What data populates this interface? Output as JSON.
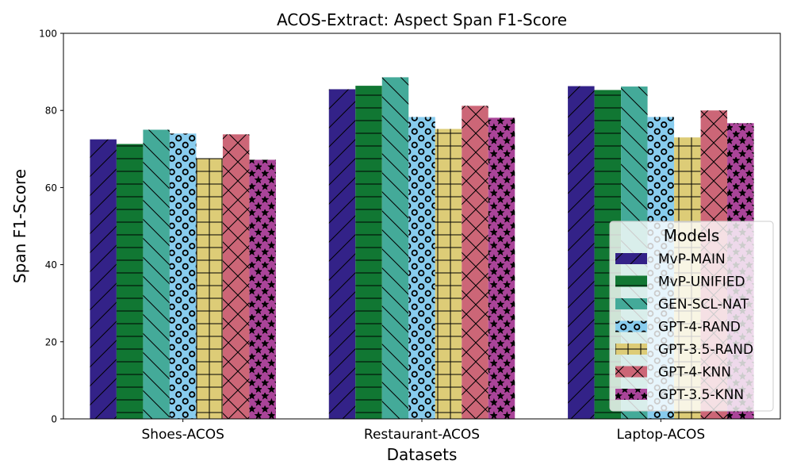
{
  "chart_data": {
    "type": "bar",
    "title": "ACOS-Extract: Aspect Span F1-Score",
    "xlabel": "Datasets",
    "ylabel": "Span F1-Score",
    "ylim": [
      0,
      100
    ],
    "yticks": [
      0,
      20,
      40,
      60,
      80,
      100
    ],
    "grid": false,
    "categories": [
      "Shoes-ACOS",
      "Restaurant-ACOS",
      "Laptop-ACOS"
    ],
    "legend": {
      "title": "Models",
      "placement": "lower-right"
    },
    "series": [
      {
        "name": "MvP-MAIN",
        "color": "#332288",
        "pattern": "diagonal",
        "values": [
          72.5,
          85.5,
          86.3
        ]
      },
      {
        "name": "MvP-UNIFIED",
        "color": "#117733",
        "pattern": "horizontal",
        "values": [
          71.3,
          86.4,
          85.3
        ]
      },
      {
        "name": "GEN-SCL-NAT",
        "color": "#44AA99",
        "pattern": "backdiagonal",
        "values": [
          75.0,
          88.6,
          86.2
        ]
      },
      {
        "name": "GPT-4-RAND",
        "color": "#88CCEE",
        "pattern": "circles",
        "values": [
          74.0,
          78.3,
          78.3
        ]
      },
      {
        "name": "GPT-3.5-RAND",
        "color": "#DDCC77",
        "pattern": "grid",
        "values": [
          67.6,
          75.2,
          73.0
        ]
      },
      {
        "name": "GPT-4-KNN",
        "color": "#CC6677",
        "pattern": "crosshatch",
        "values": [
          73.8,
          81.2,
          80.0
        ]
      },
      {
        "name": "GPT-3.5-KNN",
        "color": "#AA4499",
        "pattern": "stars",
        "values": [
          67.2,
          78.1,
          76.7
        ]
      }
    ]
  }
}
